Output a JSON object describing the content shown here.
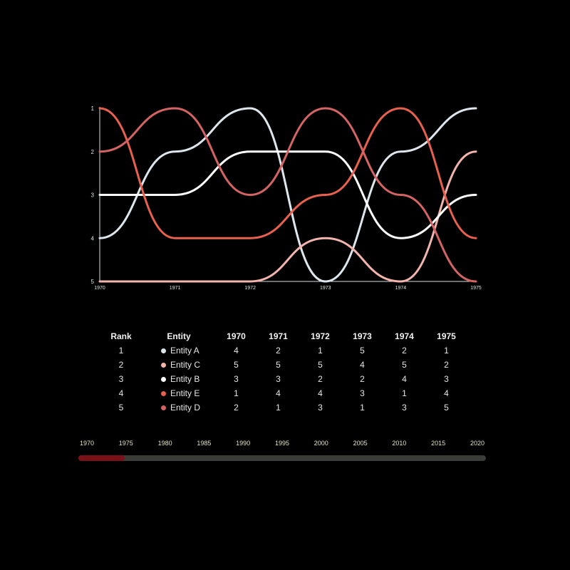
{
  "chart_data": {
    "type": "line",
    "subtype": "bump",
    "x": [
      "1970",
      "1971",
      "1972",
      "1973",
      "1974",
      "1975"
    ],
    "y_ticks": [
      "1",
      "2",
      "3",
      "4",
      "5"
    ],
    "ylim": [
      1,
      5
    ],
    "y_reversed": true,
    "grid": false,
    "series": [
      {
        "name": "Entity A",
        "color": "#dce6ec",
        "values": [
          4,
          2,
          1,
          5,
          2,
          1
        ]
      },
      {
        "name": "Entity C",
        "color": "#f2b4ac",
        "values": [
          5,
          5,
          5,
          4,
          5,
          2
        ]
      },
      {
        "name": "Entity B",
        "color": "#ffffff",
        "values": [
          3,
          3,
          2,
          2,
          4,
          3
        ]
      },
      {
        "name": "Entity E",
        "color": "#e8604e",
        "values": [
          1,
          4,
          4,
          3,
          1,
          4
        ]
      },
      {
        "name": "Entity D",
        "color": "#d46464",
        "values": [
          2,
          1,
          3,
          1,
          3,
          5
        ]
      }
    ]
  },
  "table": {
    "headers": [
      "Rank",
      "Entity",
      "1970",
      "1971",
      "1972",
      "1973",
      "1974",
      "1975"
    ],
    "rows": [
      {
        "rank": "1",
        "entity": "Entity A",
        "color": "#dce6ec",
        "values": [
          "4",
          "2",
          "1",
          "5",
          "2",
          "1"
        ]
      },
      {
        "rank": "2",
        "entity": "Entity C",
        "color": "#f2b4ac",
        "values": [
          "5",
          "5",
          "5",
          "4",
          "5",
          "2"
        ]
      },
      {
        "rank": "3",
        "entity": "Entity B",
        "color": "#ffffff",
        "values": [
          "3",
          "3",
          "2",
          "2",
          "4",
          "3"
        ]
      },
      {
        "rank": "4",
        "entity": "Entity E",
        "color": "#e8604e",
        "values": [
          "1",
          "4",
          "4",
          "3",
          "1",
          "4"
        ]
      },
      {
        "rank": "5",
        "entity": "Entity D",
        "color": "#d46464",
        "values": [
          "2",
          "1",
          "3",
          "1",
          "3",
          "5"
        ]
      }
    ]
  },
  "timeline": {
    "labels": [
      "1970",
      "1975",
      "1980",
      "1985",
      "1990",
      "1995",
      "2000",
      "2005",
      "2010",
      "2015",
      "2020"
    ],
    "range": [
      1970,
      2020
    ],
    "selected_end": 1975,
    "fill_color": "#7a1018",
    "track_color": "#3a3d37"
  }
}
